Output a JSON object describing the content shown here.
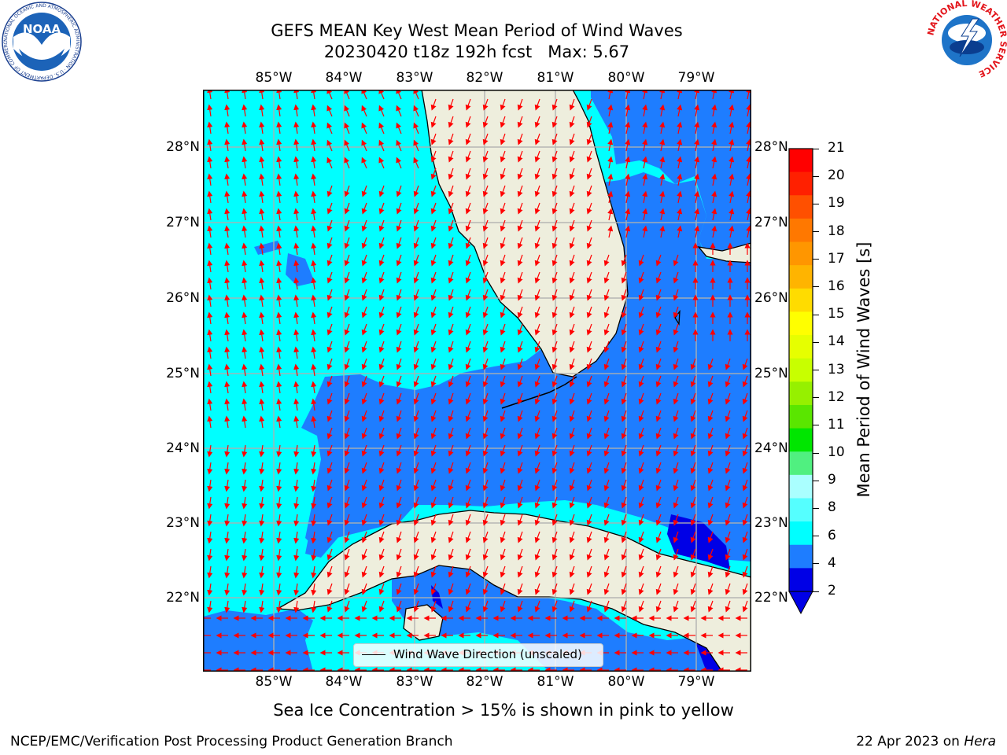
{
  "header": {
    "title_line1": "GEFS MEAN Key West Mean Period of Wind Waves",
    "title_line2": "20230420 t18z 192h fcst   Max: 5.67"
  },
  "map": {
    "lon_labels": [
      "85°W",
      "84°W",
      "83°W",
      "82°W",
      "81°W",
      "80°W",
      "79°W"
    ],
    "lat_labels": [
      "28°N",
      "27°N",
      "26°N",
      "25°N",
      "24°N",
      "23°N",
      "22°N"
    ],
    "ocean_color": "#00ffff",
    "low_period_color": "#1e7dff",
    "lowest_period_color": "#0000e6",
    "land_color": "#eeeedd",
    "arrow_color": "#ff0000",
    "grid_color": "#b0b0b0"
  },
  "colorbar": {
    "label": "Mean Period of Wind Waves [s]",
    "ticks": [
      "21",
      "20",
      "19",
      "18",
      "17",
      "16",
      "15",
      "14",
      "13",
      "12",
      "11",
      "10",
      "9",
      "8",
      "6",
      "4",
      "2"
    ],
    "colors": [
      "#ff0000",
      "#ff2000",
      "#ff5000",
      "#ff7800",
      "#ff9600",
      "#ffb400",
      "#ffdc00",
      "#ffff00",
      "#e6ff00",
      "#c8ff00",
      "#96f000",
      "#5ae600",
      "#00e600",
      "#50f080",
      "#aaffff",
      "#55ffff",
      "#00ffff",
      "#1e7dff",
      "#0000e6"
    ]
  },
  "legend": {
    "text": "Wind Wave Direction (unscaled)"
  },
  "notes": {
    "sea_ice": "Sea Ice Concentration > 15% is shown in pink to yellow"
  },
  "footer": {
    "left": "NCEP/EMC/Verification Post Processing Product Generation Branch",
    "date": "22 Apr 2023 on ",
    "host": "Hera"
  },
  "logos": {
    "noaa_text": "NOAA",
    "noaa_ring": "NATIONAL OCEANIC AND ATMOSPHERIC ADMINISTRATION · U.S. DEPARTMENT OF COMMERCE",
    "nws_ring": "NATIONAL WEATHER SERVICE"
  }
}
